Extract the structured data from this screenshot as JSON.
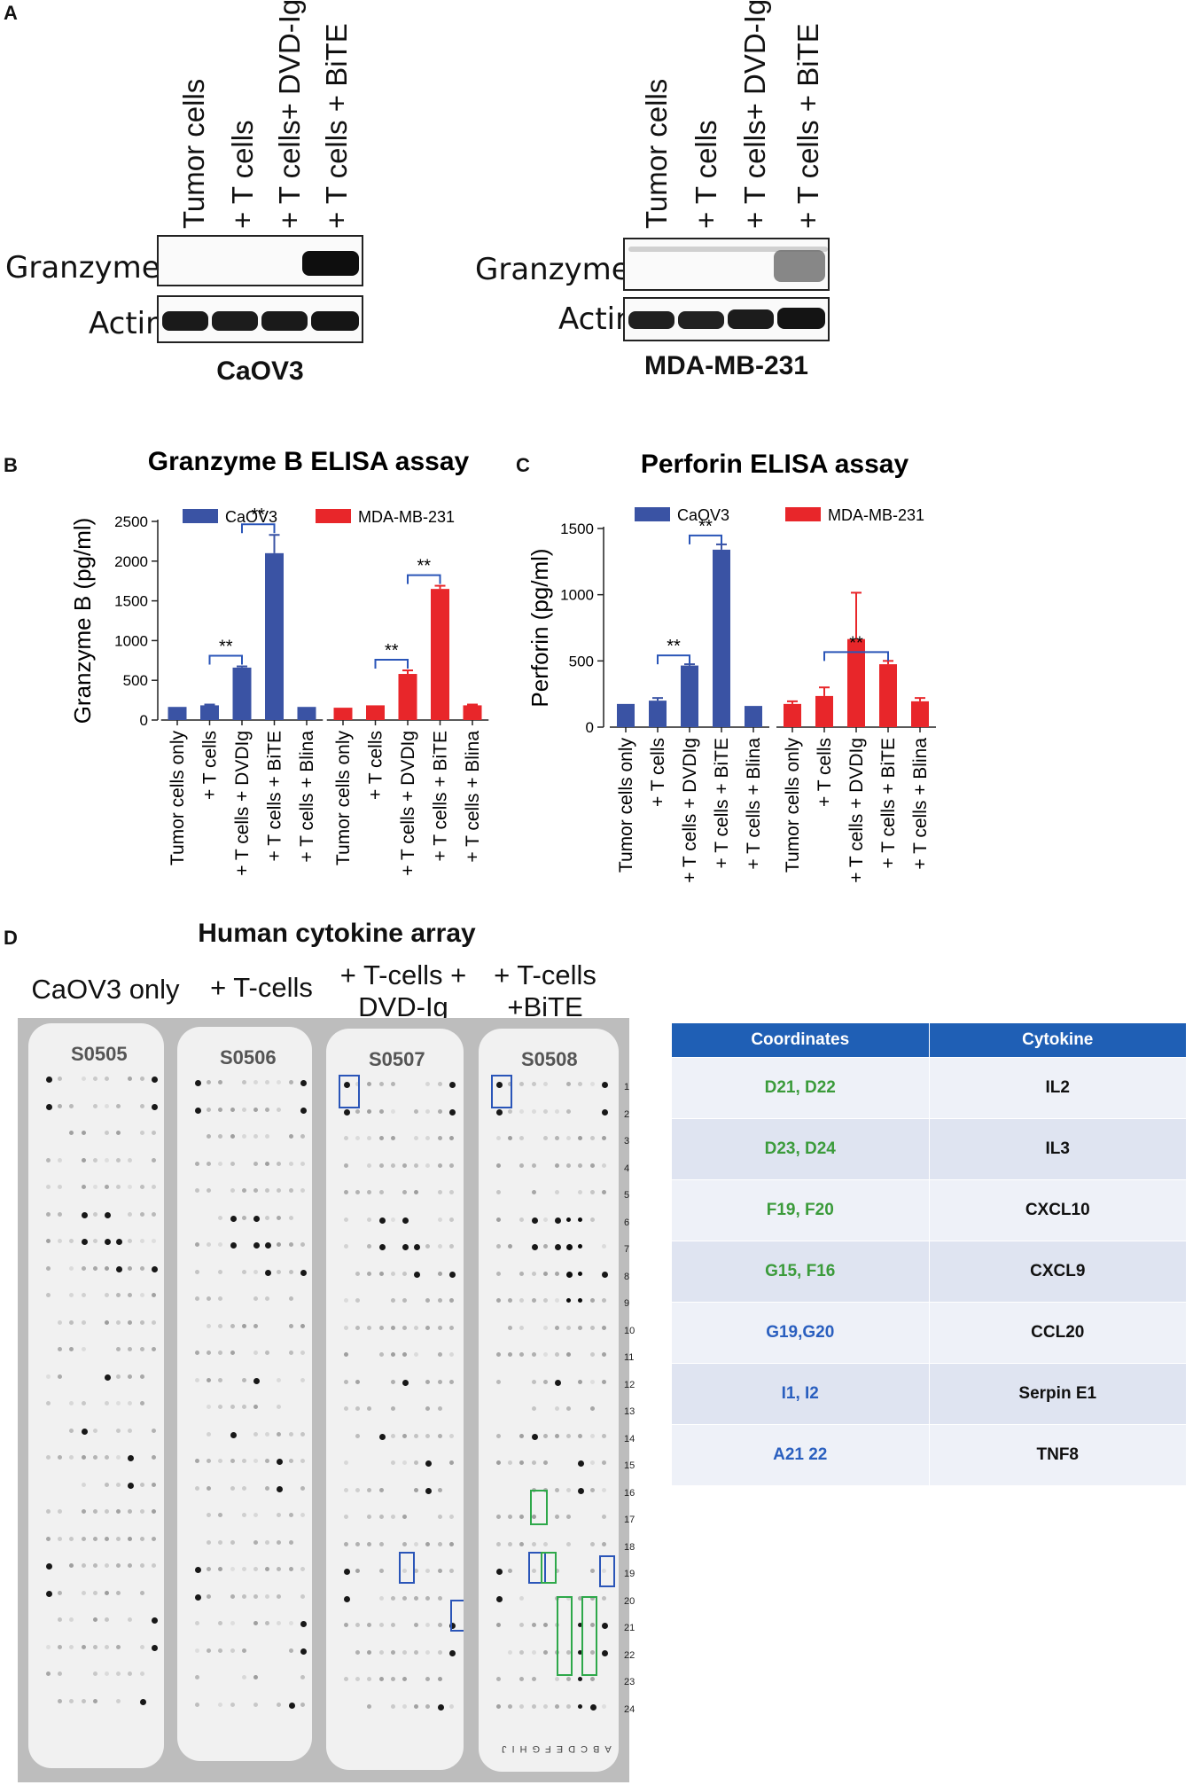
{
  "panel_labels": {
    "a": "A",
    "b": "B",
    "c": "C",
    "d": "D"
  },
  "blots": {
    "left": {
      "lanes": [
        "Tumor cells",
        "+ T cells",
        "+ T cells+ DVD-Ig",
        "+ T cells + BiTE"
      ],
      "rows": [
        "Granzyme  B",
        "Actin"
      ],
      "cell_line": "CaOV3"
    },
    "right": {
      "lanes": [
        "Tumor  cells",
        "+ T cells",
        "+ T cells+ DVD-Ig",
        "+ T cells + BiTE"
      ],
      "rows": [
        "Granzyme  B",
        "Actin"
      ],
      "cell_line": "MDA-MB-231"
    }
  },
  "chart_data": [
    {
      "type": "bar",
      "title": "Granzyme B ELISA assay",
      "ylabel": "Granzyme B  (pg/ml)",
      "ylim": [
        0,
        2500
      ],
      "yticks": [
        0,
        500,
        1000,
        1500,
        2000,
        2500
      ],
      "categories": [
        "Tumor cells only",
        "+ T cells",
        "+ T cells + DVDIg",
        "+ T cells + BiTE",
        "+ T cells + Blina"
      ],
      "legend_position": "top",
      "series": [
        {
          "name": "CaOV3",
          "color": "#3a53a4",
          "values": [
            165,
            185,
            660,
            2100,
            165
          ],
          "errors": [
            0,
            10,
            15,
            230,
            0
          ]
        },
        {
          "name": "MDA-MB-231",
          "color": "#e8262a",
          "values": [
            155,
            185,
            580,
            1650,
            185
          ],
          "errors": [
            0,
            0,
            45,
            40,
            10
          ]
        }
      ],
      "significance": [
        {
          "series": 0,
          "from": 1,
          "to": 2,
          "label": "**"
        },
        {
          "series": 0,
          "from": 2,
          "to": 3,
          "label": "**"
        },
        {
          "series": 1,
          "from": 1,
          "to": 2,
          "label": "**"
        },
        {
          "series": 1,
          "from": 2,
          "to": 3,
          "label": "**"
        }
      ]
    },
    {
      "type": "bar",
      "title": "Perforin ELISA assay",
      "ylabel": "Perforin (pg/ml)",
      "ylim": [
        0,
        1500
      ],
      "yticks": [
        0,
        500,
        1000,
        1500
      ],
      "categories": [
        "Tumor cells only",
        "+ T cells",
        "+ T cells + DVDIg",
        "+ T cells + BiTE",
        "+ T cells + Blina"
      ],
      "legend_position": "top",
      "series": [
        {
          "name": "CaOV3",
          "color": "#3a53a4",
          "values": [
            175,
            200,
            465,
            1340,
            160
          ],
          "errors": [
            0,
            20,
            10,
            40,
            0
          ]
        },
        {
          "name": "MDA-MB-231",
          "color": "#e8262a",
          "values": [
            175,
            235,
            665,
            475,
            195
          ],
          "errors": [
            20,
            65,
            350,
            25,
            25
          ]
        }
      ],
      "significance": [
        {
          "series": 0,
          "from": 1,
          "to": 2,
          "label": "**"
        },
        {
          "series": 0,
          "from": 2,
          "to": 3,
          "label": "**"
        },
        {
          "series": 1,
          "from": 1,
          "to": 3,
          "label": "**"
        }
      ]
    }
  ],
  "cytokine_array": {
    "title": "Human cytokine array",
    "conditions": [
      "CaOV3 only",
      "+ T-cells",
      "+ T-cells +\nDVD-Ig",
      "+ T-cells\n+BiTE"
    ],
    "membrane_ids": [
      "S0505",
      "S0506",
      "S0507",
      "S0508"
    ],
    "row_numbers": [
      "1",
      "2",
      "3",
      "4",
      "5",
      "6",
      "7",
      "8",
      "9",
      "10",
      "11",
      "12",
      "13",
      "14",
      "15",
      "16",
      "17",
      "18",
      "19",
      "20",
      "21",
      "22",
      "23",
      "24"
    ],
    "bottom_letters": "ABCDEFGHIJ",
    "highlight_blue": "#2a55b8",
    "highlight_green": "#2ea84a"
  },
  "cytokine_table": {
    "headers": [
      "Coordinates",
      "Cytokine"
    ],
    "rows": [
      {
        "coord": "D21, D22",
        "coord_color": "#3b9b3b",
        "cytokine": "IL2"
      },
      {
        "coord": "D23, D24",
        "coord_color": "#3b9b3b",
        "cytokine": "IL3"
      },
      {
        "coord": "F19, F20",
        "coord_color": "#3b9b3b",
        "cytokine": "CXCL10"
      },
      {
        "coord": "G15, F16",
        "coord_color": "#3b9b3b",
        "cytokine": "CXCL9"
      },
      {
        "coord": "G19,G20",
        "coord_color": "#2a5fbf",
        "cytokine": "CCL20"
      },
      {
        "coord": "I1, I2",
        "coord_color": "#2a5fbf",
        "cytokine": "Serpin E1"
      },
      {
        "coord": "A21 22",
        "coord_color": "#2a5fbf",
        "cytokine": "TNF8"
      }
    ]
  }
}
